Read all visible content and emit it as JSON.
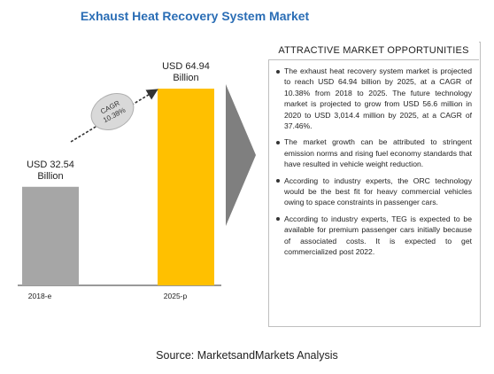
{
  "header": {
    "title": "Exhaust Heat Recovery System Market"
  },
  "chart_data": {
    "type": "bar",
    "categories": [
      "2018-e",
      "2025-p"
    ],
    "values": [
      32.54,
      64.94
    ],
    "value_labels": [
      [
        "USD 32.54",
        "Billion"
      ],
      [
        "USD 64.94",
        "Billion"
      ]
    ],
    "colors": [
      "#a6a6a6",
      "#ffc000"
    ],
    "cagr_label": [
      "CAGR",
      "10.38%"
    ],
    "ylim": [
      0,
      64.94
    ]
  },
  "panel": {
    "title": "ATTRACTIVE MARKET OPPORTUNITIES",
    "bullets": [
      "The exhaust heat recovery system market is projected to reach USD 64.94 billion by 2025, at a CAGR of 10.38% from 2018 to 2025. The future technology market is projected to grow from USD 56.6 million in 2020 to USD 3,014.4 million by 2025, at a CAGR of 37.46%.",
      "The market growth can be attributed to stringent emission norms and rising fuel economy standards that have resulted in vehicle weight reduction.",
      "According to industry experts, the ORC technology would be the best fit for heavy commercial vehicles owing to space constraints in passenger cars.",
      "According to industry experts, TEG is expected to be available for premium passenger cars initially because of associated costs. It is expected to get commercialized post 2022."
    ]
  },
  "footer": {
    "source": "Source: MarketsandMarkets Analysis"
  }
}
